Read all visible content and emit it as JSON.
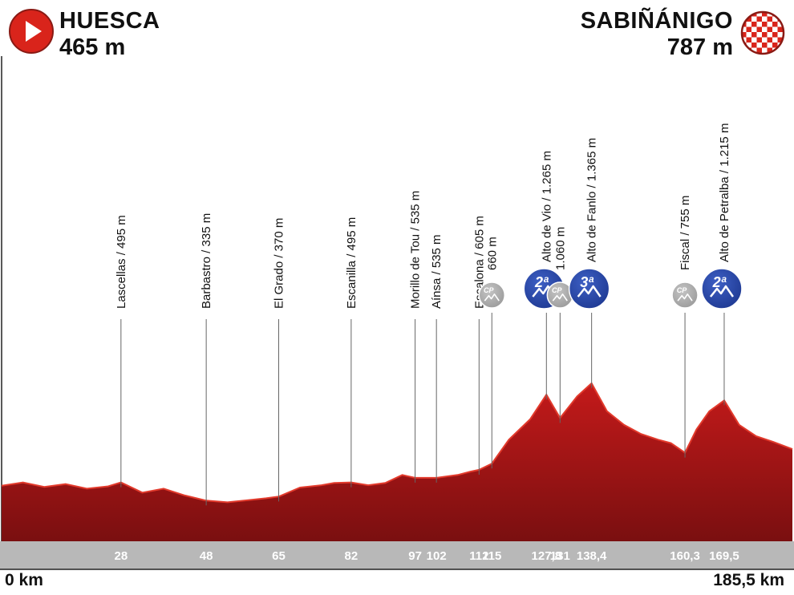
{
  "start": {
    "name": "HUESCA",
    "altitude": "465 m"
  },
  "finish": {
    "name": "SABIÑÁNIGO",
    "altitude": "787 m"
  },
  "distance": {
    "start": "0 km",
    "end": "185,5 km"
  },
  "colors": {
    "profile": "#c41a1a",
    "profile_dark": "#7a0f10",
    "band": "#b8b8b8",
    "climb_badge": "#1f3a93",
    "cp_badge": "#9b9b9b"
  },
  "chart_data": {
    "type": "area",
    "title": "",
    "xlabel": "",
    "ylabel": "",
    "xlim": [
      0,
      185.5
    ],
    "ylim": [
      0,
      1400
    ],
    "x": [
      0,
      5,
      10,
      15,
      20,
      25,
      28,
      33,
      38,
      43,
      48,
      53,
      58,
      62,
      65,
      70,
      75,
      78,
      82,
      86,
      90,
      94,
      97,
      102,
      107,
      110,
      112,
      115,
      119,
      124,
      127.8,
      131,
      135,
      138.4,
      142,
      146,
      150,
      154,
      157,
      160.3,
      163,
      166,
      169.5,
      173,
      177,
      181,
      185.5
    ],
    "elevation": [
      465,
      495,
      455,
      480,
      440,
      460,
      495,
      405,
      440,
      380,
      335,
      320,
      340,
      355,
      370,
      450,
      470,
      490,
      495,
      470,
      490,
      560,
      535,
      535,
      560,
      590,
      605,
      660,
      870,
      1050,
      1265,
      1060,
      1250,
      1365,
      1120,
      1000,
      920,
      870,
      840,
      755,
      960,
      1120,
      1215,
      1000,
      900,
      850,
      787
    ],
    "waypoints": [
      {
        "name": "Lascellas / 495 m",
        "km": 28,
        "km_label": "28",
        "elevation": 495
      },
      {
        "name": "Barbastro / 335 m",
        "km": 48,
        "km_label": "48",
        "elevation": 335
      },
      {
        "name": "El Grado / 370 m",
        "km": 65,
        "km_label": "65",
        "elevation": 370
      },
      {
        "name": "Escanilla / 495 m",
        "km": 82,
        "km_label": "82",
        "elevation": 495
      },
      {
        "name": "Morillo de Tou / 535 m",
        "km": 97,
        "km_label": "97",
        "elevation": 535
      },
      {
        "name": "Aínsa / 535 m",
        "km": 102,
        "km_label": "102",
        "elevation": 535
      },
      {
        "name": "Escalona / 605 m",
        "km": 112,
        "km_label": "112",
        "elevation": 605
      },
      {
        "name": "660 m",
        "km": 115,
        "km_label": "115",
        "elevation": 660,
        "badge": "cp"
      },
      {
        "name": "Alto de Vio / 1.265 m",
        "km": 127.8,
        "km_label": "127,8",
        "elevation": 1265,
        "badge": "2ª"
      },
      {
        "name": "1.060 m",
        "km": 131,
        "km_label": "131",
        "elevation": 1060,
        "badge": "cp"
      },
      {
        "name": "Alto de Fanlo / 1.365 m",
        "km": 138.4,
        "km_label": "138,4",
        "elevation": 1365,
        "badge": "3ª"
      },
      {
        "name": "Fiscal / 755 m",
        "km": 160.3,
        "km_label": "160,3",
        "elevation": 755,
        "badge": "cp"
      },
      {
        "name": "Alto de Petralba / 1.215 m",
        "km": 169.5,
        "km_label": "169,5",
        "elevation": 1215,
        "badge": "2ª"
      }
    ],
    "cp_label": "CP"
  }
}
